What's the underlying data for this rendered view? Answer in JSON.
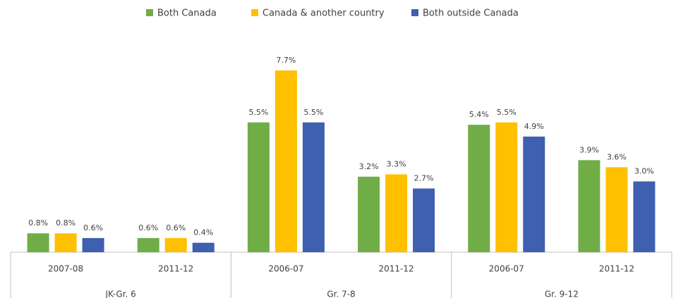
{
  "chart_data": {
    "type": "bar",
    "categories": [
      "2007-08",
      "2011-12",
      "2006-07",
      "2011-12",
      "2006-07",
      "2011-12"
    ],
    "category_groups": [
      "JK-Gr. 6",
      "Gr. 7-8",
      "Gr. 9-12"
    ],
    "series": [
      {
        "name": "Both Canada",
        "color": "#70ad47",
        "values": [
          0.8,
          0.6,
          5.5,
          3.2,
          5.4,
          3.9
        ],
        "value_labels": [
          "0.8%",
          "0.6%",
          "5.5%",
          "3.2%",
          "5.4%",
          "3.9%"
        ]
      },
      {
        "name": "Canada & another country",
        "color": "#ffc000",
        "values": [
          0.8,
          0.6,
          7.7,
          3.3,
          5.5,
          3.6
        ],
        "value_labels": [
          "0.8%",
          "0.6%",
          "7.7%",
          "3.3%",
          "5.5%",
          "3.6%"
        ]
      },
      {
        "name": "Both outside Canada",
        "color": "#3f5fb0",
        "values": [
          0.6,
          0.4,
          5.5,
          2.7,
          4.9,
          3.0
        ],
        "value_labels": [
          "0.6%",
          "0.4%",
          "5.5%",
          "2.7%",
          "4.9%",
          "3.0%"
        ]
      }
    ],
    "legend": "top"
  }
}
